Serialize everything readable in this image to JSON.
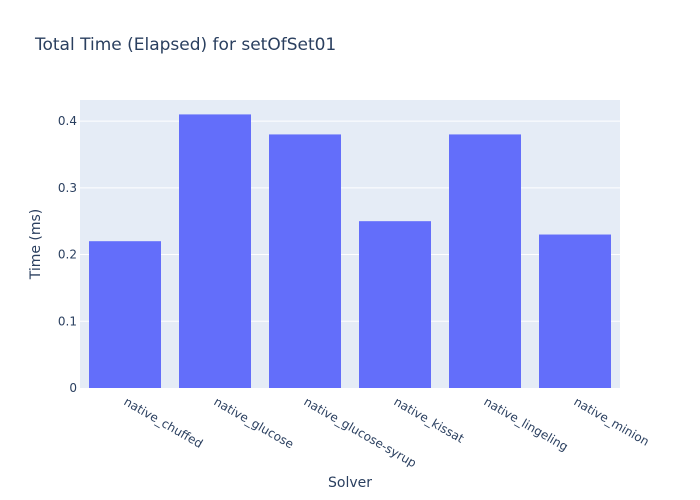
{
  "chart_data": {
    "type": "bar",
    "title": "Total Time (Elapsed) for setOfSet01",
    "xlabel": "Solver",
    "ylabel": "Time (ms)",
    "categories": [
      "native_chuffed",
      "native_glucose",
      "native_glucose-syrup",
      "native_kissat",
      "native_lingeling",
      "native_minion"
    ],
    "values": [
      0.22,
      0.41,
      0.38,
      0.25,
      0.38,
      0.23
    ],
    "ylim": [
      0,
      0.4316
    ],
    "yticks": [
      0,
      0.1,
      0.2,
      0.3,
      0.4
    ],
    "ytick_labels": [
      "0",
      "0.1",
      "0.2",
      "0.3",
      "0.4"
    ],
    "grid": true,
    "colors": {
      "bar": "#636efa",
      "plot_bg": "#e5ecf6",
      "grid": "#ffffff",
      "text": "#2a3f5f"
    }
  }
}
